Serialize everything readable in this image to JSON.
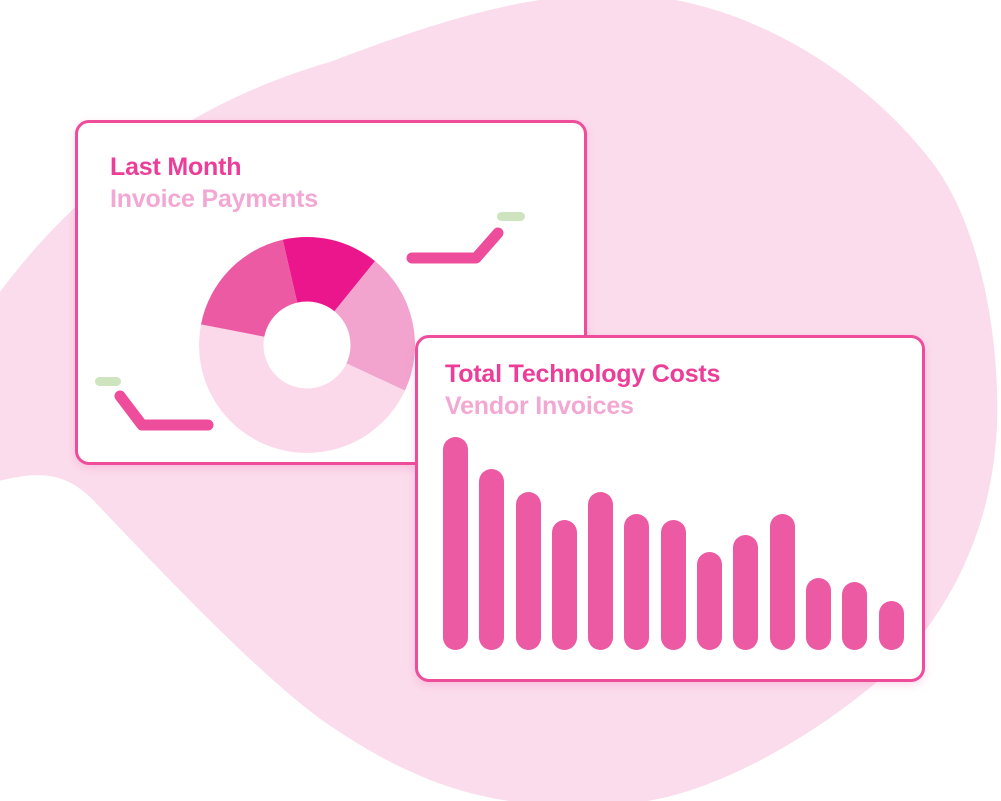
{
  "illustration": {
    "description": "Two dashboard chart cards over a pink organic blob background"
  },
  "colors": {
    "blob": "#FBDCEC",
    "card-bg": "#FFFFFF",
    "card-border": "#EE4D9B",
    "title": "#EC3E99",
    "subtitle": "#F2A8D3",
    "bar": "#EC5AA4",
    "trend-line": "#EE4D9B",
    "pill-green": "#CEE4BE"
  },
  "cards": [
    {
      "title": "Last Month",
      "subtitle": "Invoice Payments"
    },
    {
      "title": "Total Technology Costs",
      "subtitle": "Vendor Invoices"
    }
  ],
  "chart_data": [
    {
      "type": "pie",
      "title": "Last Month",
      "subtitle": "Invoice Payments",
      "style": "donut",
      "inner_radius_ratio": 0.4,
      "legend": "none",
      "data_labels": "none",
      "segments": [
        {
          "name": "segment-bright-magenta",
          "share_pct": 14.4,
          "from_deg": 347,
          "to_deg": 399,
          "color": "#EC168C"
        },
        {
          "name": "segment-light-pink",
          "share_pct": 21.1,
          "from_deg": 39,
          "to_deg": 115,
          "color": "#F2A4CE"
        },
        {
          "name": "segment-pale-pink",
          "share_pct": 46.1,
          "from_deg": 115,
          "to_deg": 281,
          "color": "#FBD9EA"
        },
        {
          "name": "segment-medium-pink",
          "share_pct": 18.3,
          "from_deg": 281,
          "to_deg": 347,
          "color": "#EC5AA4"
        }
      ]
    },
    {
      "type": "bar",
      "title": "Total Technology Costs",
      "subtitle": "Vendor Invoices",
      "values": [
        100,
        85,
        74,
        61,
        74,
        64,
        61,
        46,
        54,
        64,
        34,
        32,
        23
      ],
      "ylim": [
        0,
        100
      ],
      "unit": "relative bar height (no axis labels shown)",
      "grid": false,
      "axis_labels": "none",
      "bar_color": "#EC5AA4",
      "bar_style": "rounded-pill"
    }
  ],
  "decorations": {
    "trend_up": "line chart glyph rising to the right with green pill marker",
    "trend_down": "line chart glyph falling then flat with green pill marker"
  }
}
